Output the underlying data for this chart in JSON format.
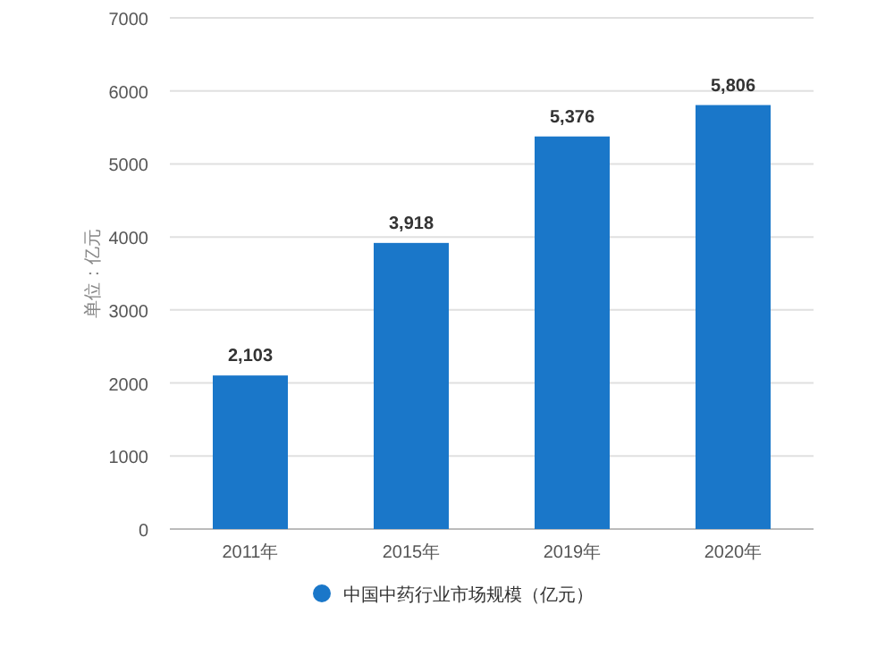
{
  "chart_data": {
    "type": "bar",
    "ylabel": "单位：亿元",
    "categories": [
      "2011年",
      "2015年",
      "2019年",
      "2020年"
    ],
    "series": [
      {
        "name": "中国中药行业市场规模（亿元）",
        "color": "#1a77c9",
        "values": [
          2103,
          3918,
          5376,
          5806
        ],
        "value_labels": [
          "2,103",
          "3,918",
          "5,376",
          "5,806"
        ]
      }
    ],
    "ylim": [
      0,
      7000
    ],
    "yticks": [
      0,
      1000,
      2000,
      3000,
      4000,
      5000,
      6000,
      7000
    ],
    "grid": "y",
    "legend": "bottom"
  }
}
